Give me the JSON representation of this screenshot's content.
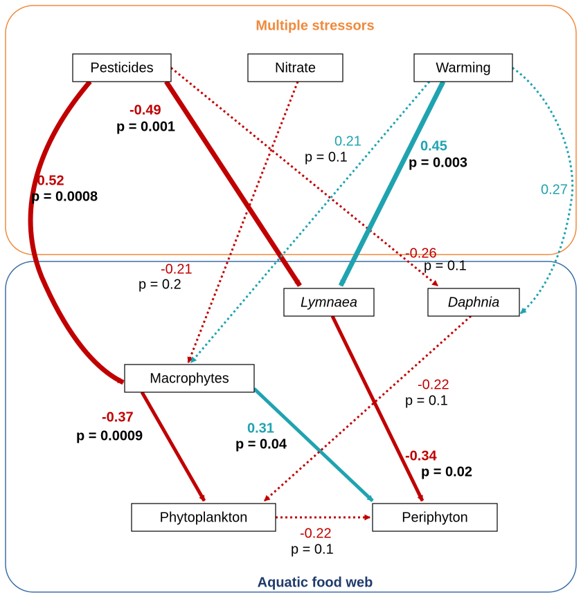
{
  "groups": [
    {
      "title": "Multiple stressors"
    },
    {
      "title": "Aquatic food web"
    }
  ],
  "nodes": [
    {
      "label": "Pesticides"
    },
    {
      "label": "Nitrate"
    },
    {
      "label": "Warming"
    },
    {
      "label": "Lymnaea"
    },
    {
      "label": "Daphnia"
    },
    {
      "label": "Macrophytes"
    },
    {
      "label": "Phytoplankton"
    },
    {
      "label": "Periphyton"
    }
  ],
  "edges": [
    {
      "coef": "-0.52",
      "p": "p = 0.0008"
    },
    {
      "coef": "-0.49",
      "p": "p = 0.001"
    },
    {
      "coef": "-0.26",
      "p": "p = 0.1"
    },
    {
      "coef": "-0.21",
      "p": "p = 0.2"
    },
    {
      "coef": "0.45",
      "p": "p = 0.003"
    },
    {
      "coef": "0.21",
      "p": "p = 0.1"
    },
    {
      "coef": "0.27"
    },
    {
      "coef": "-0.37",
      "p": "p = 0.0009"
    },
    {
      "coef": "0.31",
      "p": "p = 0.04"
    },
    {
      "coef": "-0.34",
      "p": "p = 0.02"
    },
    {
      "coef": "-0.22",
      "p": "p = 0.1"
    },
    {
      "coef": "-0.22",
      "p": "p = 0.1"
    }
  ]
}
